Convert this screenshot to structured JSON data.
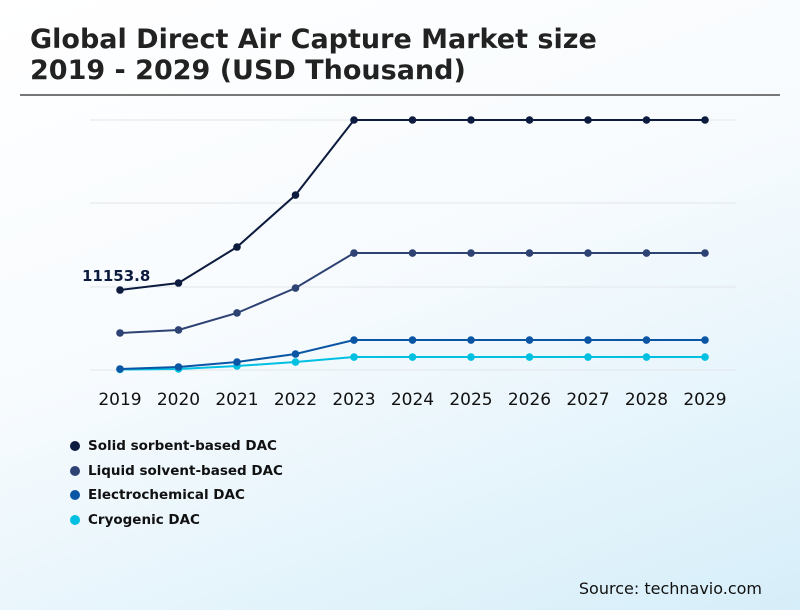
{
  "title_line1": "Global Direct Air Capture Market size",
  "title_line2": "2019 - 2029 (USD Thousand)",
  "source": "Source: technavio.com",
  "chart_data": {
    "type": "line",
    "title": "Global Direct Air Capture Market size 2019 - 2029 (USD Thousand)",
    "categories": [
      "2019",
      "2020",
      "2021",
      "2022",
      "2023",
      "2024",
      "2025",
      "2026",
      "2027",
      "2028",
      "2029"
    ],
    "ylim": [
      0,
      35000
    ],
    "grid": true,
    "legend": "bottom-left",
    "series": [
      {
        "name": "Solid sorbent-based DAC",
        "color": "#0d1b3e",
        "values": [
          11153.8,
          12130,
          17150,
          24400,
          34860,
          34860,
          34860,
          34860,
          34860,
          34860,
          34860
        ]
      },
      {
        "name": "Liquid solvent-based DAC",
        "color": "#2e4373",
        "values": [
          5160,
          5580,
          7950,
          11430,
          16310,
          16310,
          16310,
          16310,
          16310,
          16310,
          16310
        ]
      },
      {
        "name": "Electrochemical DAC",
        "color": "#0b56a4",
        "values": [
          140,
          420,
          1115,
          2230,
          4180,
          4180,
          4180,
          4180,
          4180,
          4180,
          4180
        ]
      },
      {
        "name": "Cryogenic DAC",
        "color": "#00c0e2",
        "values": [
          70,
          140,
          560,
          1115,
          1810,
          1810,
          1810,
          1810,
          1810,
          1810,
          1810
        ]
      }
    ],
    "data_labels": [
      {
        "series": 0,
        "index": 0,
        "text": "11153.8"
      }
    ]
  }
}
